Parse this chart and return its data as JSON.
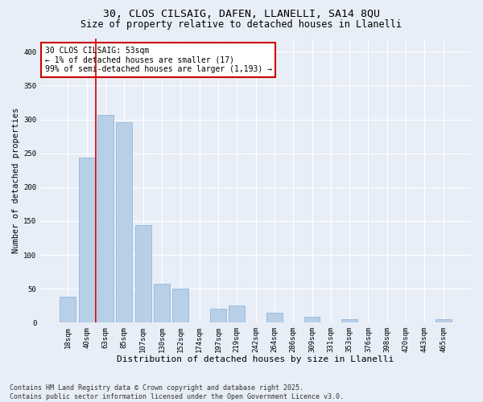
{
  "title_line1": "30, CLOS CILSAIG, DAFEN, LLANELLI, SA14 8QU",
  "title_line2": "Size of property relative to detached houses in Llanelli",
  "xlabel": "Distribution of detached houses by size in Llanelli",
  "ylabel": "Number of detached properties",
  "bar_labels": [
    "18sqm",
    "40sqm",
    "63sqm",
    "85sqm",
    "107sqm",
    "130sqm",
    "152sqm",
    "174sqm",
    "197sqm",
    "219sqm",
    "242sqm",
    "264sqm",
    "286sqm",
    "309sqm",
    "331sqm",
    "353sqm",
    "376sqm",
    "398sqm",
    "420sqm",
    "443sqm",
    "465sqm"
  ],
  "bar_values": [
    38,
    244,
    307,
    296,
    144,
    57,
    50,
    0,
    20,
    25,
    0,
    15,
    0,
    8,
    0,
    5,
    0,
    0,
    0,
    0,
    5
  ],
  "bar_color": "#b8cfe8",
  "bar_edge_color": "#8aafd4",
  "bg_color": "#e8eef7",
  "grid_color": "#ffffff",
  "annotation_box_text": "30 CLOS CILSAIG: 53sqm\n← 1% of detached houses are smaller (17)\n99% of semi-detached houses are larger (1,193) →",
  "vline_x": 1.5,
  "vline_color": "#cc0000",
  "ylim": [
    0,
    420
  ],
  "yticks": [
    0,
    50,
    100,
    150,
    200,
    250,
    300,
    350,
    400
  ],
  "footer_text": "Contains HM Land Registry data © Crown copyright and database right 2025.\nContains public sector information licensed under the Open Government Licence v3.0.",
  "title_fontsize": 9.5,
  "subtitle_fontsize": 8.5,
  "axis_label_fontsize": 7.5,
  "tick_fontsize": 6.5,
  "annotation_fontsize": 7,
  "footer_fontsize": 6
}
